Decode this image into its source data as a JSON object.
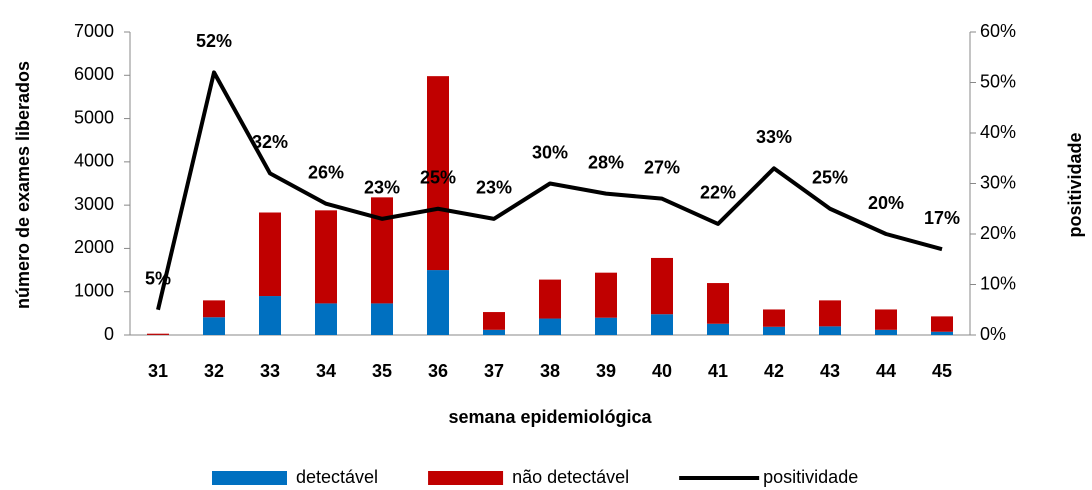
{
  "chart_data": {
    "type": "bar",
    "stacked": true,
    "x_label": "semana epidemiológica",
    "y_label": "número de exames liberados",
    "y2_label": "positividade",
    "categories": [
      "31",
      "32",
      "33",
      "34",
      "35",
      "36",
      "37",
      "38",
      "39",
      "40",
      "41",
      "42",
      "43",
      "44",
      "45"
    ],
    "series": [
      {
        "name": "detectável",
        "color": "#0070c0",
        "values": [
          2,
          410,
          900,
          730,
          730,
          1500,
          120,
          380,
          400,
          480,
          260,
          190,
          200,
          120,
          75
        ]
      },
      {
        "name": "não detectável",
        "color": "#c00000",
        "values": [
          28,
          390,
          1930,
          2150,
          2450,
          4480,
          410,
          900,
          1040,
          1300,
          940,
          400,
          600,
          470,
          355
        ]
      },
      {
        "name": "positividade",
        "color": "#000000",
        "type": "line",
        "axis": "y2",
        "values": [
          5,
          52,
          32,
          26,
          23,
          25,
          23,
          30,
          28,
          27,
          22,
          33,
          25,
          20,
          17
        ],
        "value_labels": [
          "5%",
          "52%",
          "32%",
          "26%",
          "23%",
          "25%",
          "23%",
          "30%",
          "28%",
          "27%",
          "22%",
          "33%",
          "25%",
          "20%",
          "17%"
        ]
      }
    ],
    "ylim": [
      0,
      7000
    ],
    "yticks": [
      0,
      1000,
      2000,
      3000,
      4000,
      5000,
      6000,
      7000
    ],
    "y2lim": [
      0,
      60
    ],
    "y2ticks": [
      {
        "value": 0,
        "label": "0%"
      },
      {
        "value": 10,
        "label": "10%"
      },
      {
        "value": 20,
        "label": "20%"
      },
      {
        "value": 30,
        "label": "30%"
      },
      {
        "value": 40,
        "label": "40%"
      },
      {
        "value": 50,
        "label": "50%"
      },
      {
        "value": 60,
        "label": "60%"
      }
    ],
    "grid": false,
    "legend": "bottom"
  }
}
